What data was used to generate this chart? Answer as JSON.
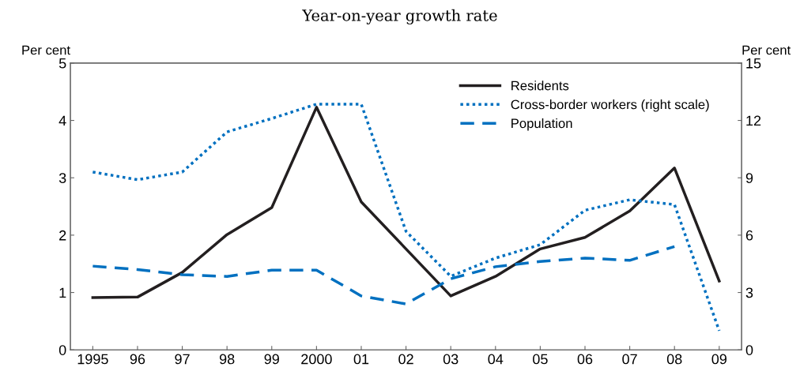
{
  "chart_data": {
    "type": "line",
    "title": "Year-on-year growth rate",
    "ylabel": "Per cent",
    "y2label": "Per cent",
    "categories": [
      "1995",
      "96",
      "97",
      "98",
      "99",
      "2000",
      "01",
      "02",
      "03",
      "04",
      "05",
      "06",
      "07",
      "08",
      "09"
    ],
    "series": [
      {
        "name": "Residents",
        "color": "#231f20",
        "line_style": "solid",
        "values": [
          0.91,
          0.92,
          1.35,
          2.01,
          2.48,
          4.23,
          2.58,
          1.76,
          0.94,
          1.28,
          1.76,
          1.96,
          2.42,
          3.17,
          1.2
        ]
      },
      {
        "name": "Cross-border workers (right scale)",
        "color": "#0070c0",
        "line_style": "dotted",
        "axis": "y2",
        "values": [
          9.3,
          8.9,
          9.3,
          11.4,
          12.1,
          12.85,
          12.85,
          6.2,
          3.85,
          4.8,
          5.5,
          7.3,
          7.85,
          7.6,
          1.0
        ]
      },
      {
        "name": "Population",
        "color": "#0070c0",
        "line_style": "dashed",
        "values": [
          1.46,
          1.4,
          1.31,
          1.28,
          1.39,
          1.39,
          0.94,
          0.8,
          1.24,
          1.45,
          1.54,
          1.6,
          1.56,
          1.8,
          null
        ]
      }
    ],
    "ylim": [
      0,
      5
    ],
    "yticks": [
      0,
      1,
      2,
      3,
      4,
      5
    ],
    "y2lim": [
      0,
      15
    ],
    "y2ticks": [
      0,
      3,
      6,
      9,
      12,
      15
    ],
    "grid": false,
    "legend": "top right",
    "marker": "none"
  }
}
